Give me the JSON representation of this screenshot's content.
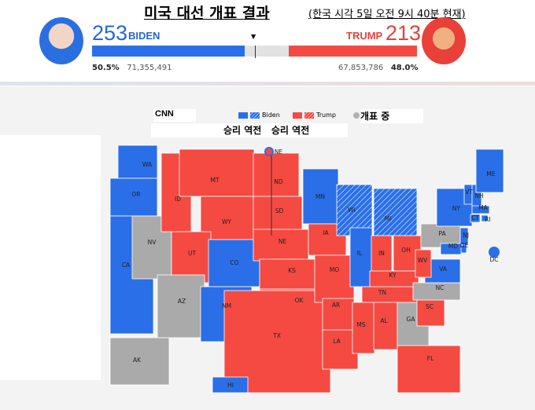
{
  "header": {
    "title": "미국 대선 개표 결과",
    "subtitle": "(한국 시각 5일 오전 9시 40분 현재)"
  },
  "biden": {
    "ev": "253",
    "name": "BIDEN",
    "pct": "50.5%",
    "votes": "71,355,491",
    "color": "#2a6fe8"
  },
  "trump": {
    "ev": "213",
    "name": "TRUMP",
    "pct": "48.0%",
    "votes": "67,853,786",
    "color": "#f44a42"
  },
  "progress": {
    "biden_ev": 253,
    "trump_ev": 213,
    "total_ev": 538,
    "to_win": 270
  },
  "legend": {
    "source": "CNN",
    "biden": "Biden",
    "trump": "Trump",
    "counting": "개표 중",
    "flip1": "승리 역전",
    "flip2": "승리 역전",
    "counting_color": "#b0b0b0"
  },
  "states": [
    {
      "id": "WA",
      "s": "b"
    },
    {
      "id": "OR",
      "s": "b"
    },
    {
      "id": "CA",
      "s": "b"
    },
    {
      "id": "NV",
      "s": "g"
    },
    {
      "id": "ID",
      "s": "r"
    },
    {
      "id": "MT",
      "s": "r"
    },
    {
      "id": "WY",
      "s": "r"
    },
    {
      "id": "UT",
      "s": "r"
    },
    {
      "id": "CO",
      "s": "b"
    },
    {
      "id": "AZ",
      "s": "g"
    },
    {
      "id": "NM",
      "s": "b"
    },
    {
      "id": "ND",
      "s": "r"
    },
    {
      "id": "SD",
      "s": "r"
    },
    {
      "id": "NE",
      "s": "r"
    },
    {
      "id": "KS",
      "s": "r"
    },
    {
      "id": "OK",
      "s": "r"
    },
    {
      "id": "TX",
      "s": "r"
    },
    {
      "id": "MN",
      "s": "b"
    },
    {
      "id": "IA",
      "s": "r"
    },
    {
      "id": "MO",
      "s": "r"
    },
    {
      "id": "AR",
      "s": "r"
    },
    {
      "id": "LA",
      "s": "r"
    },
    {
      "id": "WI",
      "s": "bf"
    },
    {
      "id": "IL",
      "s": "b"
    },
    {
      "id": "MI",
      "s": "bf"
    },
    {
      "id": "IN",
      "s": "r"
    },
    {
      "id": "OH",
      "s": "r"
    },
    {
      "id": "KY",
      "s": "r"
    },
    {
      "id": "TN",
      "s": "r"
    },
    {
      "id": "MS",
      "s": "r"
    },
    {
      "id": "AL",
      "s": "r"
    },
    {
      "id": "GA",
      "s": "g"
    },
    {
      "id": "FL",
      "s": "r"
    },
    {
      "id": "SC",
      "s": "r"
    },
    {
      "id": "NC",
      "s": "g"
    },
    {
      "id": "VA",
      "s": "b"
    },
    {
      "id": "WV",
      "s": "r"
    },
    {
      "id": "PA",
      "s": "g"
    },
    {
      "id": "NY",
      "s": "b"
    },
    {
      "id": "VT",
      "s": "b"
    },
    {
      "id": "NH",
      "s": "b"
    },
    {
      "id": "ME",
      "s": "b"
    },
    {
      "id": "MA",
      "s": "b"
    },
    {
      "id": "CT",
      "s": "b"
    },
    {
      "id": "RI",
      "s": "b"
    },
    {
      "id": "NJ",
      "s": "b"
    },
    {
      "id": "DE",
      "s": "b"
    },
    {
      "id": "MD",
      "s": "b"
    },
    {
      "id": "DC",
      "s": "b"
    },
    {
      "id": "AK",
      "s": "g"
    },
    {
      "id": "HI",
      "s": "b"
    }
  ]
}
